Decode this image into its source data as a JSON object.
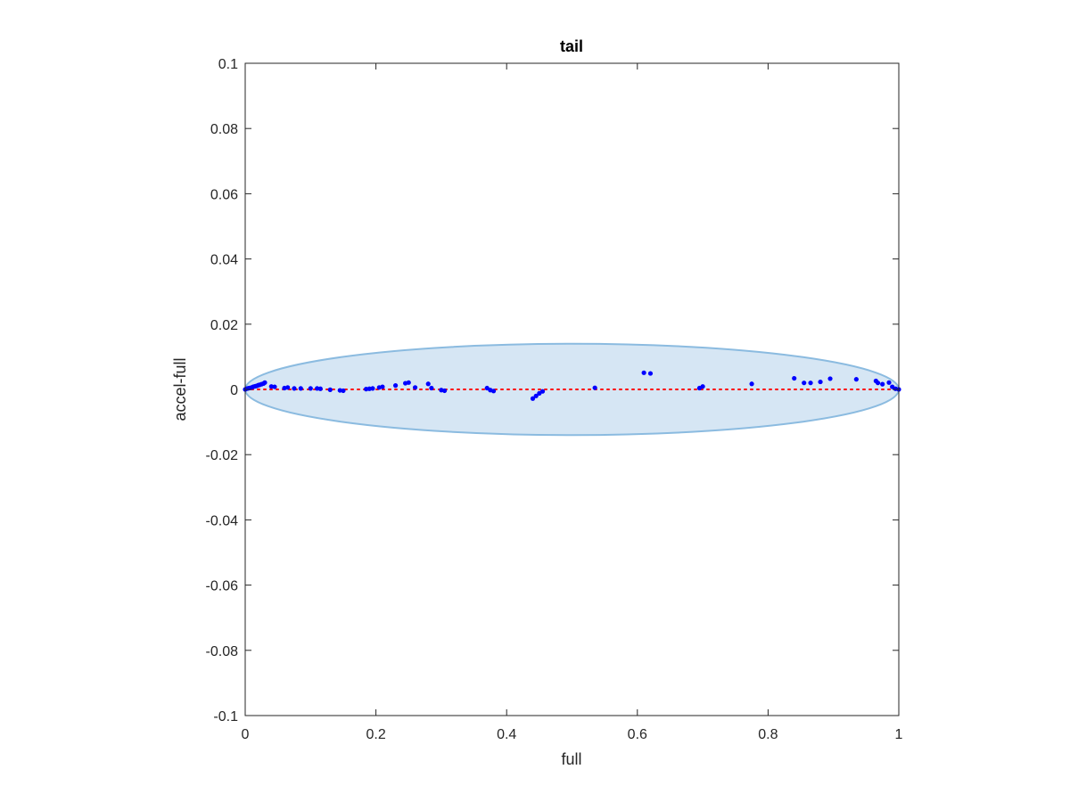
{
  "chart_data": {
    "type": "scatter",
    "title": "tail",
    "xlabel": "full",
    "ylabel": "accel-full",
    "xlim": [
      0,
      1
    ],
    "ylim": [
      -0.1,
      0.1
    ],
    "x_ticks": [
      "0",
      "0.2",
      "0.4",
      "0.6",
      "0.8",
      "1"
    ],
    "y_ticks": [
      "0.1",
      "0.08",
      "0.06",
      "0.04",
      "0.02",
      "0",
      "-0.02",
      "-0.04",
      "-0.06",
      "-0.08",
      "-0.1"
    ],
    "grid": false,
    "series": [
      {
        "type": "scatter",
        "color": "#0000ff",
        "points": [
          [
            0.0,
            0.0
          ],
          [
            0.002,
            0.0002
          ],
          [
            0.004,
            0.0003
          ],
          [
            0.006,
            0.0004
          ],
          [
            0.008,
            0.0005
          ],
          [
            0.01,
            0.0006
          ],
          [
            0.012,
            0.0008
          ],
          [
            0.014,
            0.0009
          ],
          [
            0.016,
            0.001
          ],
          [
            0.018,
            0.0011
          ],
          [
            0.02,
            0.0013
          ],
          [
            0.022,
            0.0014
          ],
          [
            0.025,
            0.0016
          ],
          [
            0.028,
            0.0018
          ],
          [
            0.03,
            0.0021
          ],
          [
            0.04,
            0.0009
          ],
          [
            0.045,
            0.0008
          ],
          [
            0.06,
            0.0004
          ],
          [
            0.065,
            0.0006
          ],
          [
            0.075,
            0.0003
          ],
          [
            0.085,
            0.0003
          ],
          [
            0.1,
            0.0003
          ],
          [
            0.11,
            0.0003
          ],
          [
            0.115,
            0.0002
          ],
          [
            0.13,
            -0.0001
          ],
          [
            0.145,
            -0.0003
          ],
          [
            0.15,
            -0.0004
          ],
          [
            0.185,
            0.0001
          ],
          [
            0.19,
            0.0002
          ],
          [
            0.195,
            0.0003
          ],
          [
            0.205,
            0.0006
          ],
          [
            0.21,
            0.0008
          ],
          [
            0.23,
            0.0012
          ],
          [
            0.245,
            0.0019
          ],
          [
            0.25,
            0.0021
          ],
          [
            0.26,
            0.0006
          ],
          [
            0.28,
            0.0017
          ],
          [
            0.285,
            0.0004
          ],
          [
            0.3,
            -0.0002
          ],
          [
            0.305,
            -0.0004
          ],
          [
            0.37,
            0.0004
          ],
          [
            0.375,
            -0.0002
          ],
          [
            0.38,
            -0.0005
          ],
          [
            0.44,
            -0.0028
          ],
          [
            0.445,
            -0.002
          ],
          [
            0.45,
            -0.0012
          ],
          [
            0.455,
            -0.0006
          ],
          [
            0.535,
            0.0005
          ],
          [
            0.61,
            0.0051
          ],
          [
            0.62,
            0.0049
          ],
          [
            0.695,
            0.0004
          ],
          [
            0.7,
            0.0009
          ],
          [
            0.775,
            0.0017
          ],
          [
            0.84,
            0.0034
          ],
          [
            0.855,
            0.002
          ],
          [
            0.865,
            0.002
          ],
          [
            0.88,
            0.0023
          ],
          [
            0.895,
            0.0033
          ],
          [
            0.935,
            0.0031
          ],
          [
            0.965,
            0.0026
          ],
          [
            0.968,
            0.002
          ],
          [
            0.975,
            0.0016
          ],
          [
            0.985,
            0.0021
          ],
          [
            0.99,
            0.0008
          ],
          [
            0.995,
            0.0002
          ],
          [
            1.0,
            0.0
          ]
        ]
      },
      {
        "type": "line",
        "style": "dotted",
        "color": "#ff0000",
        "points": [
          [
            0,
            0
          ],
          [
            1,
            0
          ]
        ]
      }
    ],
    "ellipse": {
      "center": [
        0.5,
        0.0
      ],
      "radius_x": 0.5,
      "radius_y": 0.014,
      "fill": "#d6e6f4",
      "stroke": "#8bbbe0"
    }
  }
}
